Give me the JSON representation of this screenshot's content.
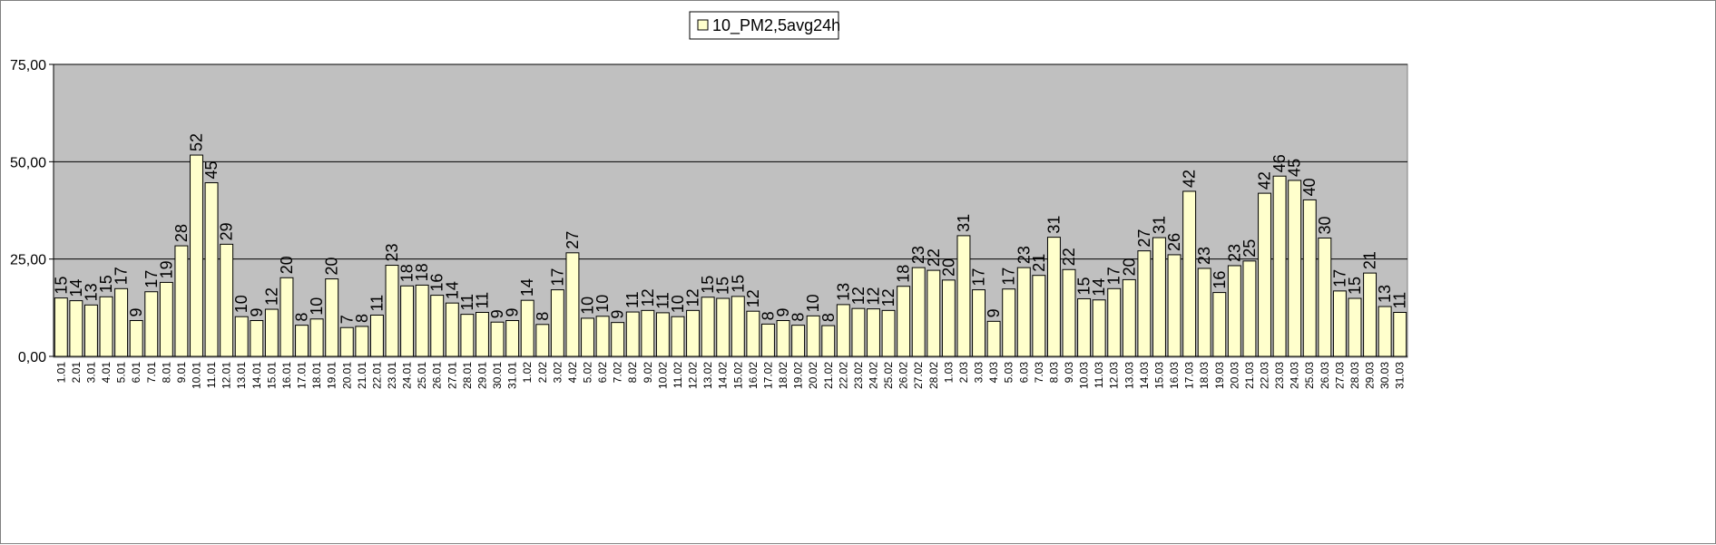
{
  "chart_data": {
    "type": "bar",
    "title": "",
    "xlabel": "",
    "ylabel": "",
    "ylim": [
      0,
      75
    ],
    "yticks": [
      "0,00",
      "25,00",
      "50,00",
      "75,00"
    ],
    "ytick_values": [
      0,
      25,
      50,
      75
    ],
    "grid": "horizontal",
    "legend": "top-center",
    "colors": {
      "plot_background": "#c0c0c0",
      "bar_fill": "#ffffcc",
      "bar_stroke": "#000000",
      "gridline": "#000000"
    },
    "categories": [
      "1.01",
      "2.01",
      "3.01",
      "4.01",
      "5.01",
      "6.01",
      "7.01",
      "8.01",
      "9.01",
      "10.01",
      "11.01",
      "12.01",
      "13.01",
      "14.01",
      "15.01",
      "16.01",
      "17.01",
      "18.01",
      "19.01",
      "20.01",
      "21.01",
      "22.01",
      "23.01",
      "24.01",
      "25.01",
      "26.01",
      "27.01",
      "28.01",
      "29.01",
      "30.01",
      "31.01",
      "1.02",
      "2.02",
      "3.02",
      "4.02",
      "5.02",
      "6.02",
      "7.02",
      "8.02",
      "9.02",
      "10.02",
      "11.02",
      "12.02",
      "13.02",
      "14.02",
      "15.02",
      "16.02",
      "17.02",
      "18.02",
      "19.02",
      "20.02",
      "21.02",
      "22.02",
      "23.02",
      "24.02",
      "25.02",
      "26.02",
      "27.02",
      "28.02",
      "1.03",
      "2.03",
      "3.03",
      "4.03",
      "5.03",
      "6.03",
      "7.03",
      "8.03",
      "9.03",
      "10.03",
      "11.03",
      "12.03",
      "13.03",
      "14.03",
      "15.03",
      "16.03",
      "17.03",
      "18.03",
      "19.03",
      "20.03",
      "21.03",
      "22.03",
      "23.03",
      "24.03",
      "25.03",
      "26.03",
      "27.03",
      "28.03",
      "29.03",
      "30.03",
      "31.03"
    ],
    "series": [
      {
        "name": "10_PM2,5avg24h",
        "values": [
          15,
          14.3,
          13.2,
          15.3,
          17.4,
          9.2,
          16.6,
          19,
          28.4,
          51.7,
          44.6,
          28.8,
          10.2,
          9.2,
          12.1,
          20.2,
          8,
          9.6,
          19.9,
          7.4,
          7.7,
          10.6,
          23.4,
          18.1,
          18.3,
          15.7,
          13.7,
          10.8,
          11.3,
          8.8,
          9.2,
          14.4,
          8.2,
          17.1,
          26.6,
          9.8,
          10.3,
          8.7,
          11.4,
          11.8,
          11.2,
          10.2,
          11.8,
          15.2,
          14.9,
          15.4,
          11.6,
          8.3,
          9.2,
          8,
          10.4,
          7.9,
          13.3,
          12.3,
          12.2,
          11.8,
          18,
          22.8,
          22.1,
          19.6,
          31,
          17.1,
          9,
          17.3,
          22.8,
          20.8,
          30.6,
          22.3,
          14.8,
          14.5,
          17.4,
          19.7,
          27.1,
          30.5,
          26.1,
          42.4,
          22.6,
          16.4,
          23.3,
          24.5,
          41.9,
          46.3,
          45.2,
          40.2,
          30.4,
          16.8,
          14.9,
          21.4,
          12.8,
          11.3
        ],
        "labels": [
          "15",
          "14",
          "13",
          "15",
          "17",
          "9",
          "17",
          "19",
          "28",
          "52",
          "45",
          "29",
          "10",
          "9",
          "12",
          "20",
          "8",
          "10",
          "20",
          "7",
          "8",
          "11",
          "23",
          "18",
          "18",
          "16",
          "14",
          "11",
          "11",
          "9",
          "9",
          "14",
          "8",
          "17",
          "27",
          "10",
          "10",
          "9",
          "11",
          "12",
          "11",
          "10",
          "12",
          "15",
          "15",
          "15",
          "12",
          "8",
          "9",
          "8",
          "10",
          "8",
          "13",
          "12",
          "12",
          "12",
          "18",
          "23",
          "22",
          "20",
          "31",
          "17",
          "9",
          "17",
          "23",
          "21",
          "31",
          "22",
          "15",
          "14",
          "17",
          "20",
          "27",
          "31",
          "26",
          "42",
          "23",
          "16",
          "23",
          "25",
          "42",
          "46",
          "45",
          "40",
          "30",
          "17",
          "15",
          "21",
          "13",
          "11"
        ]
      }
    ]
  }
}
